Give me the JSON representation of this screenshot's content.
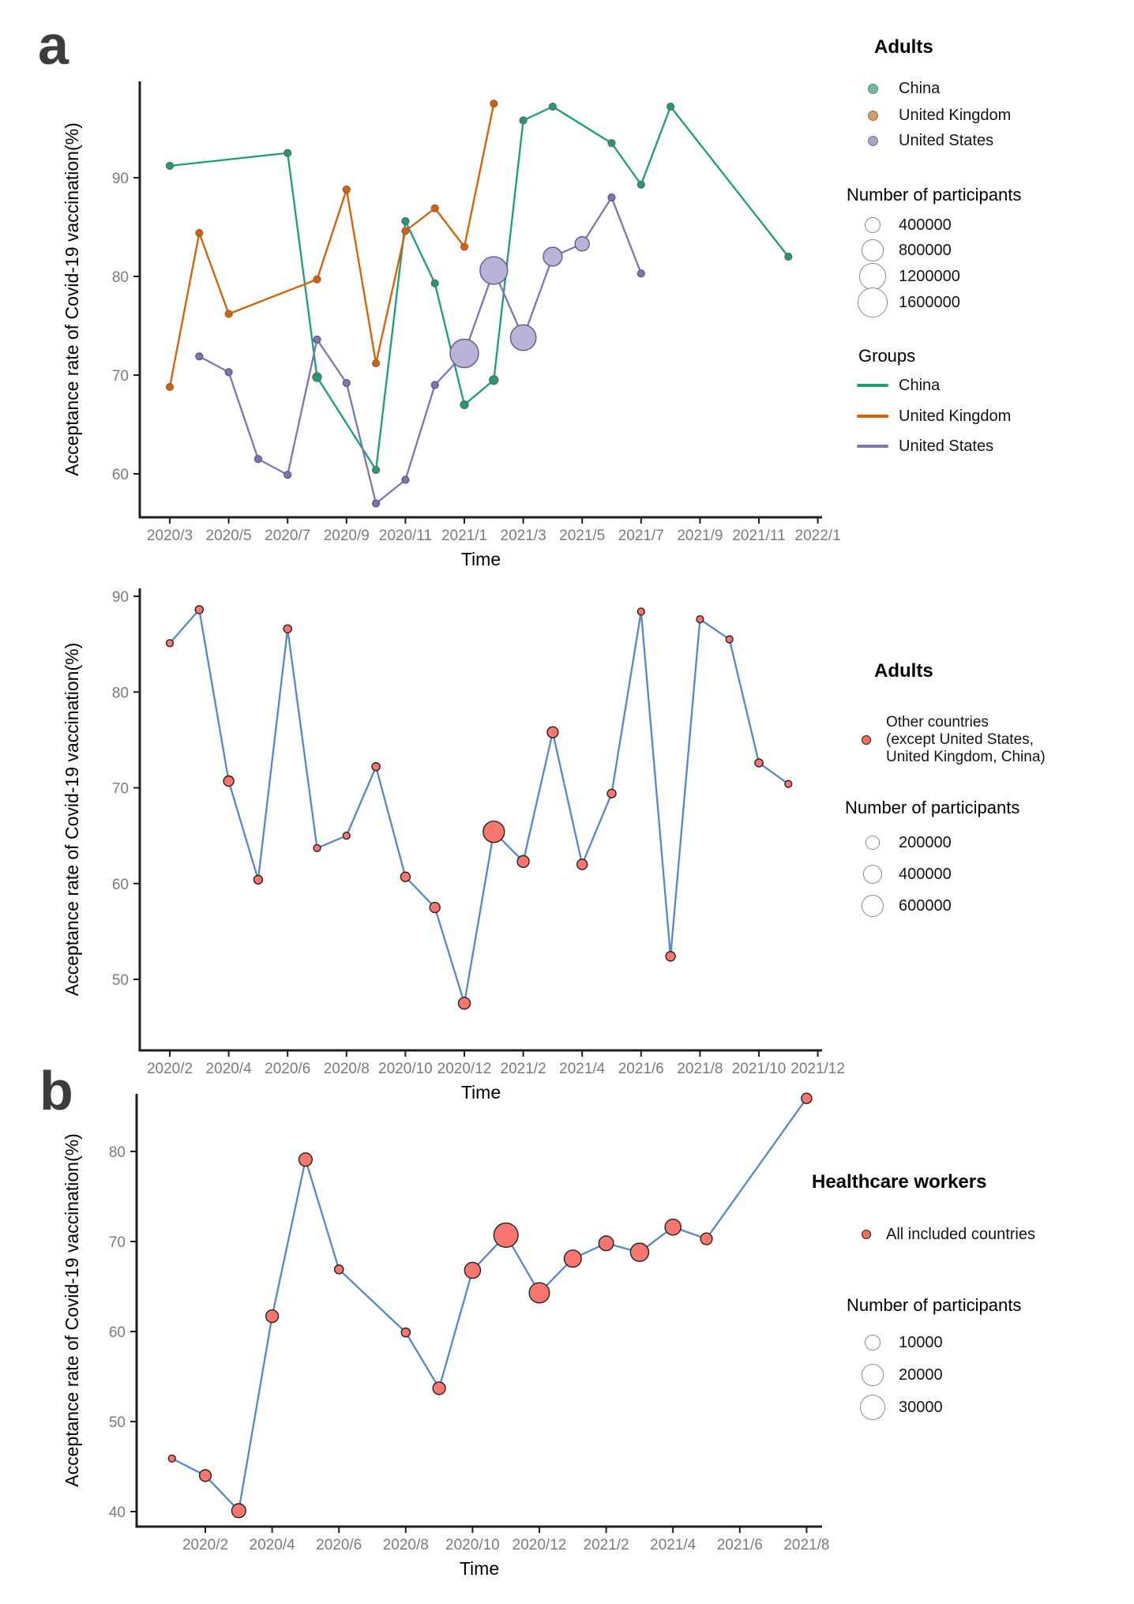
{
  "panels": {
    "a": "a",
    "b": "b"
  },
  "colors": {
    "china": "#1b9e77",
    "uk": "#d95f02",
    "us": "#7d76b5",
    "us_bubble_fill": "#b9b3da",
    "blue_line": "#5588c7",
    "salmon": "#f8766d",
    "legend_china_dot": "#6fbda1",
    "legend_uk_dot": "#dd9a60",
    "legend_us_dot": "#a7a1cc",
    "legend_salmon_dot": "#f0705a",
    "axis": "#1f1f1f",
    "tick_text": "#7e7a7a"
  },
  "chart_data": [
    {
      "id": "adults-china-uk-us",
      "type": "line-bubble",
      "group_label": "Adults",
      "xlabel": "Time",
      "ylabel": "Acceptance rate of Covid-19 vaccination(%)",
      "x_ticks": [
        "2020/3",
        "2020/5",
        "2020/7",
        "2020/9",
        "2020/11",
        "2021/1",
        "2021/3",
        "2021/5",
        "2021/7",
        "2021/9",
        "2021/11",
        "2022/1"
      ],
      "y_ticks": [
        60,
        70,
        80,
        90
      ],
      "ylim": [
        55.5,
        100
      ],
      "legend_sizes": [
        400000,
        800000,
        1200000,
        1600000
      ],
      "series": [
        {
          "name": "China",
          "color_key": "china",
          "dot_stroke": "#666666",
          "points": [
            {
              "t": "2020/3",
              "v": 91.2,
              "n": 60000
            },
            {
              "t": "2020/7",
              "v": 92.5,
              "n": 60000
            },
            {
              "t": "2020/8",
              "v": 69.8,
              "n": 150000
            },
            {
              "t": "2020/10",
              "v": 60.4,
              "n": 60000
            },
            {
              "t": "2020/11",
              "v": 85.6,
              "n": 60000
            },
            {
              "t": "2020/12",
              "v": 79.3,
              "n": 60000
            },
            {
              "t": "2021/1",
              "v": 67.0,
              "n": 120000
            },
            {
              "t": "2021/2",
              "v": 69.5,
              "n": 150000
            },
            {
              "t": "2021/3",
              "v": 95.8,
              "n": 60000
            },
            {
              "t": "2021/4",
              "v": 97.2,
              "n": 60000
            },
            {
              "t": "2021/6",
              "v": 93.5,
              "n": 60000
            },
            {
              "t": "2021/7",
              "v": 89.3,
              "n": 60000
            },
            {
              "t": "2021/8",
              "v": 97.2,
              "n": 60000
            },
            {
              "t": "2021/12",
              "v": 82.0,
              "n": 60000
            }
          ]
        },
        {
          "name": "United Kingdom",
          "color_key": "uk",
          "dot_stroke": "#8a6a52",
          "points": [
            {
              "t": "2020/3",
              "v": 68.8,
              "n": 60000
            },
            {
              "t": "2020/4",
              "v": 84.4,
              "n": 60000
            },
            {
              "t": "2020/5",
              "v": 76.2,
              "n": 60000
            },
            {
              "t": "2020/8",
              "v": 79.7,
              "n": 80000
            },
            {
              "t": "2020/9",
              "v": 88.8,
              "n": 100000
            },
            {
              "t": "2020/10",
              "v": 71.2,
              "n": 60000
            },
            {
              "t": "2020/11",
              "v": 84.6,
              "n": 60000
            },
            {
              "t": "2020/12",
              "v": 86.9,
              "n": 60000
            },
            {
              "t": "2021/1",
              "v": 83.0,
              "n": 60000
            },
            {
              "t": "2021/2",
              "v": 97.5,
              "n": 60000
            }
          ]
        },
        {
          "name": "United States",
          "color_key": "us",
          "dot_stroke": "#5f5a87",
          "light_fill": "#b9b3da",
          "light_fill_over": 300000,
          "points": [
            {
              "t": "2020/4",
              "v": 71.9,
              "n": 50000
            },
            {
              "t": "2020/5",
              "v": 70.3,
              "n": 50000
            },
            {
              "t": "2020/6",
              "v": 61.5,
              "n": 50000
            },
            {
              "t": "2020/7",
              "v": 59.9,
              "n": 50000
            },
            {
              "t": "2020/8",
              "v": 73.6,
              "n": 50000
            },
            {
              "t": "2020/9",
              "v": 69.2,
              "n": 50000
            },
            {
              "t": "2020/10",
              "v": 57.0,
              "n": 50000
            },
            {
              "t": "2020/11",
              "v": 59.4,
              "n": 50000
            },
            {
              "t": "2020/12",
              "v": 69.0,
              "n": 50000
            },
            {
              "t": "2021/1",
              "v": 72.2,
              "n": 1600000
            },
            {
              "t": "2021/2",
              "v": 80.6,
              "n": 1500000
            },
            {
              "t": "2021/3",
              "v": 73.8,
              "n": 1300000
            },
            {
              "t": "2021/4",
              "v": 82.0,
              "n": 700000
            },
            {
              "t": "2021/5",
              "v": 83.3,
              "n": 400000
            },
            {
              "t": "2021/6",
              "v": 88.0,
              "n": 60000
            },
            {
              "t": "2021/7",
              "v": 80.3,
              "n": 60000
            }
          ]
        }
      ]
    },
    {
      "id": "adults-other-countries",
      "type": "line-bubble",
      "group_label": "Adults",
      "xlabel": "Time",
      "ylabel": "Acceptance rate of Covid-19 vaccination(%)",
      "x_ticks": [
        "2020/2",
        "2020/4",
        "2020/6",
        "2020/8",
        "2020/10",
        "2020/12",
        "2021/2",
        "2021/4",
        "2021/6",
        "2021/8",
        "2021/10",
        "2021/12"
      ],
      "y_ticks": [
        50,
        60,
        70,
        80,
        90
      ],
      "ylim": [
        42.5,
        91
      ],
      "legend_sizes": [
        200000,
        400000,
        600000
      ],
      "series": [
        {
          "name": "Other countries (except United States, United Kingdom, China)",
          "color_key": "salmon",
          "line_color_key": "blue_line",
          "dot_stroke": "#222222",
          "points": [
            {
              "t": "2020/2",
              "v": 85.1,
              "n": 65000
            },
            {
              "t": "2020/3",
              "v": 88.6,
              "n": 85000
            },
            {
              "t": "2020/4",
              "v": 70.7,
              "n": 140000
            },
            {
              "t": "2020/5",
              "v": 60.4,
              "n": 100000
            },
            {
              "t": "2020/6",
              "v": 86.6,
              "n": 85000
            },
            {
              "t": "2020/7",
              "v": 63.7,
              "n": 65000
            },
            {
              "t": "2020/8",
              "v": 65.0,
              "n": 65000
            },
            {
              "t": "2020/9",
              "v": 72.2,
              "n": 85000
            },
            {
              "t": "2020/10",
              "v": 60.7,
              "n": 120000
            },
            {
              "t": "2020/11",
              "v": 57.5,
              "n": 140000
            },
            {
              "t": "2020/12",
              "v": 47.5,
              "n": 185000
            },
            {
              "t": "2021/1",
              "v": 65.4,
              "n": 600000
            },
            {
              "t": "2021/2",
              "v": 62.3,
              "n": 185000
            },
            {
              "t": "2021/3",
              "v": 75.8,
              "n": 160000
            },
            {
              "t": "2021/4",
              "v": 62.0,
              "n": 140000
            },
            {
              "t": "2021/5",
              "v": 69.4,
              "n": 100000
            },
            {
              "t": "2021/6",
              "v": 88.4,
              "n": 65000
            },
            {
              "t": "2021/7",
              "v": 52.4,
              "n": 120000
            },
            {
              "t": "2021/8",
              "v": 87.6,
              "n": 65000
            },
            {
              "t": "2021/9",
              "v": 85.5,
              "n": 65000
            },
            {
              "t": "2021/10",
              "v": 72.6,
              "n": 85000
            },
            {
              "t": "2021/11",
              "v": 70.4,
              "n": 50000
            }
          ]
        }
      ]
    },
    {
      "id": "healthcare-workers",
      "type": "line-bubble",
      "group_label": "Healthcare workers",
      "xlabel": "Time",
      "ylabel": "Acceptance rate of Covid-19 vaccination(%)",
      "x_ticks": [
        "2020/2",
        "2020/4",
        "2020/6",
        "2020/8",
        "2020/10",
        "2020/12",
        "2021/2",
        "2021/4",
        "2021/6",
        "2021/8"
      ],
      "y_ticks": [
        40,
        50,
        60,
        70,
        80
      ],
      "ylim": [
        38,
        88
      ],
      "legend_sizes": [
        10000,
        20000,
        30000
      ],
      "series": [
        {
          "name": "All included countries",
          "color_key": "salmon",
          "line_color_key": "blue_line",
          "dot_stroke": "#222222",
          "points": [
            {
              "t": "2020/1",
              "v": 45.9,
              "n": 2500
            },
            {
              "t": "2020/2",
              "v": 44.0,
              "n": 7000
            },
            {
              "t": "2020/3",
              "v": 40.1,
              "n": 10000
            },
            {
              "t": "2020/4",
              "v": 61.7,
              "n": 8000
            },
            {
              "t": "2020/5",
              "v": 79.1,
              "n": 9000
            },
            {
              "t": "2020/6",
              "v": 66.9,
              "n": 4000
            },
            {
              "t": "2020/8",
              "v": 59.9,
              "n": 4000
            },
            {
              "t": "2020/9",
              "v": 53.7,
              "n": 8000
            },
            {
              "t": "2020/10",
              "v": 66.8,
              "n": 13000
            },
            {
              "t": "2020/11",
              "v": 70.7,
              "n": 30000
            },
            {
              "t": "2020/12",
              "v": 64.3,
              "n": 21000
            },
            {
              "t": "2021/1",
              "v": 68.1,
              "n": 15000
            },
            {
              "t": "2021/2",
              "v": 69.8,
              "n": 11000
            },
            {
              "t": "2021/3",
              "v": 68.8,
              "n": 17000
            },
            {
              "t": "2021/4",
              "v": 71.6,
              "n": 13000
            },
            {
              "t": "2021/5",
              "v": 70.3,
              "n": 7000
            },
            {
              "t": "2021/8",
              "v": 85.9,
              "n": 5500
            }
          ]
        }
      ]
    }
  ],
  "legends": {
    "adults_top": {
      "title": "Adults",
      "items": [
        "China",
        "United Kingdom",
        "United States"
      ],
      "participants_title": "Number of participants",
      "sizes": [
        400000,
        800000,
        1200000,
        1600000
      ],
      "groups_title": "Groups",
      "group_items": [
        "China",
        "United Kingdom",
        "United States"
      ]
    },
    "adults_other": {
      "title": "Adults",
      "item_lines": [
        "Other countries",
        " (except United States,",
        "United Kingdom, China)"
      ],
      "participants_title": "Number of participants",
      "sizes": [
        200000,
        400000,
        600000
      ]
    },
    "healthcare": {
      "title": "Healthcare workers",
      "item": "All included countries",
      "participants_title": "Number of participants",
      "sizes": [
        10000,
        20000,
        30000
      ]
    }
  }
}
